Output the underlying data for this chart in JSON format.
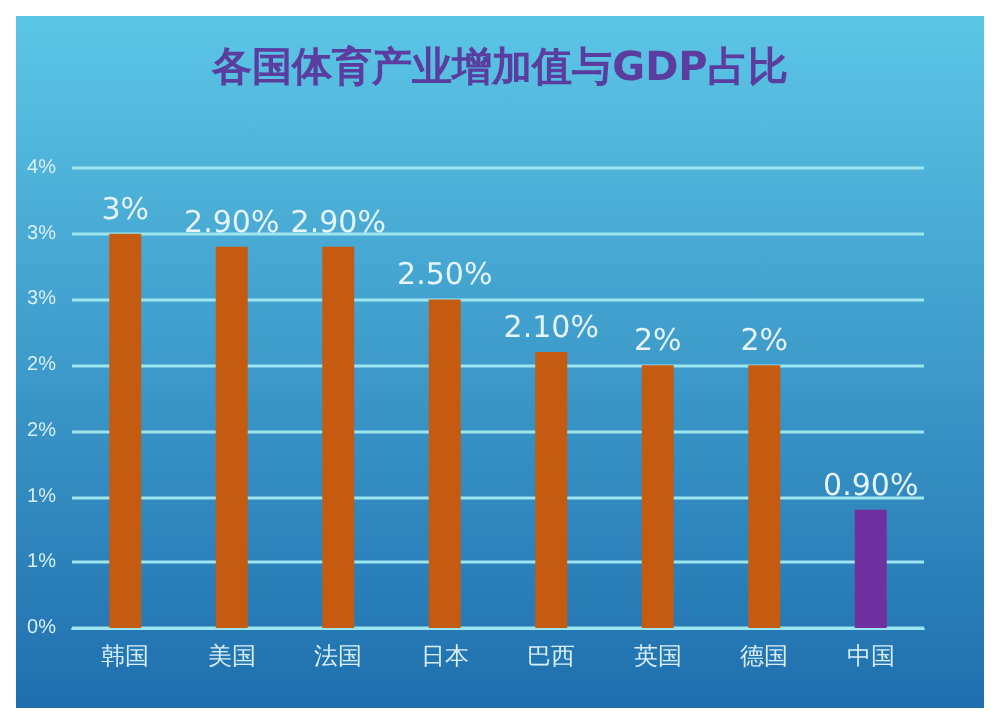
{
  "chart_data": {
    "type": "bar",
    "title": "各国体育产业增加值与GDP占比",
    "categories": [
      "韩国",
      "美国",
      "法国",
      "日本",
      "巴西",
      "英国",
      "德国",
      "中国"
    ],
    "values": [
      3,
      2.9,
      2.9,
      2.5,
      2.1,
      2,
      2,
      0.9
    ],
    "colors": [
      "#c55a11",
      "#c55a11",
      "#c55a11",
      "#c55a11",
      "#c55a11",
      "#c55a11",
      "#c55a11",
      "#7030a0"
    ],
    "value_labels": [
      "3%",
      "2.90%",
      "2.90%",
      "2.50%",
      "2.10%",
      "2%",
      "2%",
      "0.90%"
    ],
    "ylim": [
      0,
      3.5
    ],
    "yticks": [
      {
        "value": 0,
        "label": "0%"
      },
      {
        "value": 0.5,
        "label": "1%"
      },
      {
        "value": 1,
        "label": "1%"
      },
      {
        "value": 1.5,
        "label": "2%"
      },
      {
        "value": 2,
        "label": "2%"
      },
      {
        "value": 2.5,
        "label": "3%"
      },
      {
        "value": 3,
        "label": "3%"
      },
      {
        "value": 3.5,
        "label": "4%"
      }
    ],
    "grid": "y"
  }
}
